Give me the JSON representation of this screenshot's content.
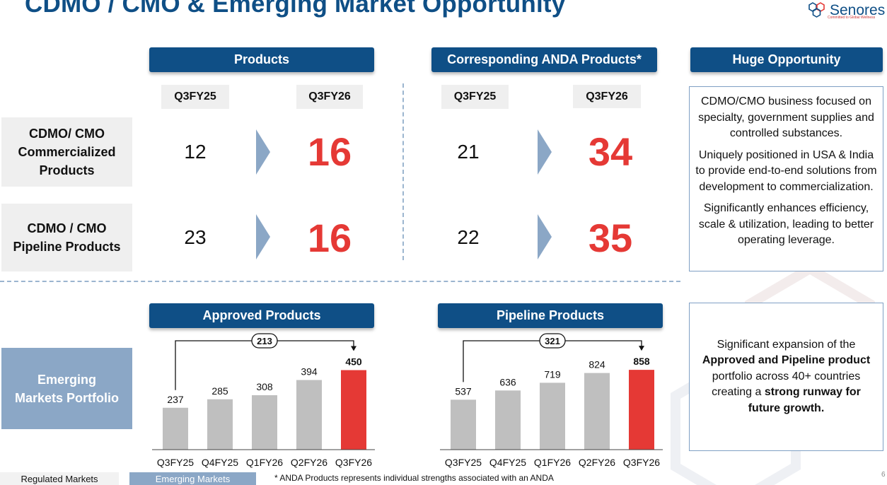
{
  "title": "CDMO / CMO & Emerging Market Opportunity",
  "logo": {
    "name": "Senores",
    "tagline": "Committed to Global Wellness",
    "icon": "hexagon-cluster-icon"
  },
  "colors": {
    "brand_blue": "#0f4f86",
    "highlight_red": "#e53935",
    "bar_grey": "#bfbfbf",
    "accent_blue": "#8ba7c6",
    "arrow_blue": "#8ba7c6"
  },
  "products_section": {
    "header": "Products",
    "col_prev": "Q3FY25",
    "col_curr": "Q3FY26",
    "rows": [
      {
        "label": "CDMO/ CMO Commercialized Products",
        "prev": "12",
        "curr": "16"
      },
      {
        "label": "CDMO / CMO Pipeline Products",
        "prev": "23",
        "curr": "16"
      }
    ]
  },
  "anda_section": {
    "header": "Corresponding ANDA Products*",
    "col_prev": "Q3FY25",
    "col_curr": "Q3FY26",
    "rows": [
      {
        "prev": "21",
        "curr": "34"
      },
      {
        "prev": "22",
        "curr": "35"
      }
    ]
  },
  "opportunity": {
    "header": "Huge Opportunity",
    "points": [
      "CDMO/CMO business focused on specialty, government supplies and controlled substances.",
      "Uniquely positioned in USA & India to provide end-to-end solutions from development to commercialization.",
      "Significantly enhances efficiency, scale & utilization, leading to better operating leverage."
    ]
  },
  "emerging_markets": {
    "label": "Emerging Markets Portfolio",
    "summary_prefix": "Significant expansion of the ",
    "summary_bold1": "Approved and Pipeline product",
    "summary_mid": " portfolio across 40+ countries creating a ",
    "summary_bold2": "strong runway for future growth."
  },
  "chart_data": [
    {
      "type": "bar",
      "title": "Approved Products",
      "categories": [
        "Q3FY25",
        "Q4FY25",
        "Q1FY26",
        "Q2FY26",
        "Q3FY26"
      ],
      "values": [
        237,
        285,
        308,
        394,
        450
      ],
      "highlight_index": 4,
      "annotation": "213",
      "ylim": [
        0,
        600
      ]
    },
    {
      "type": "bar",
      "title": "Pipeline Products",
      "categories": [
        "Q3FY25",
        "Q4FY25",
        "Q1FY26",
        "Q2FY26",
        "Q3FY26"
      ],
      "values": [
        537,
        636,
        719,
        824,
        858
      ],
      "highlight_index": 4,
      "annotation": "321",
      "ylim": [
        0,
        1140
      ]
    }
  ],
  "footer": {
    "note": "* ANDA Products represents individual strengths associated with an ANDA",
    "tab_regulated": "Regulated Markets",
    "tab_emerging": "Emerging Markets",
    "page": "6"
  }
}
